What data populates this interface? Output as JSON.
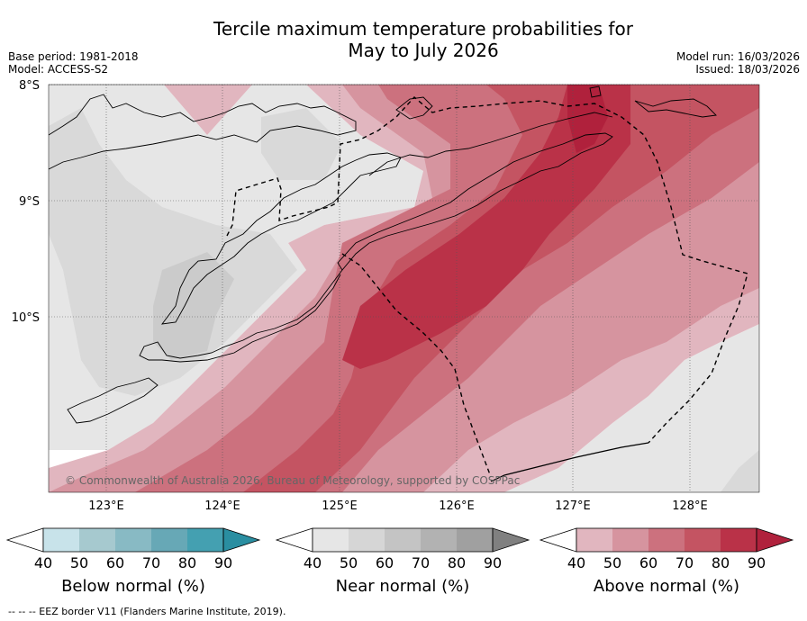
{
  "title_line1": "Tercile maximum temperature probabilities for",
  "title_line2": "May to July 2026",
  "base_period": "Base period: 1981-2018",
  "model": "Model: ACCESS-S2",
  "model_run": "Model run: 16/03/2026",
  "issued": "Issued: 18/03/2026",
  "copyright": "© Commonwealth of Australia 2026, Bureau of Meteorology, supported by COSPPac",
  "footnote": "--  --  -- EEZ border V11 (Flanders Marine Institute, 2019).",
  "lat_labels": [
    "8°S",
    "9°S",
    "10°S"
  ],
  "lon_labels": [
    "123°E",
    "124°E",
    "125°E",
    "126°E",
    "127°E",
    "128°E"
  ],
  "colorbars": [
    {
      "title": "Below normal (%)",
      "ticks": [
        "40",
        "50",
        "60",
        "70",
        "80",
        "90"
      ],
      "colors": [
        "#ffffff",
        "#c8e3ea",
        "#a6c9cf",
        "#88bac4",
        "#67a8b6",
        "#44a0b1",
        "#2a8ea1"
      ]
    },
    {
      "title": "Near normal (%)",
      "ticks": [
        "40",
        "50",
        "60",
        "70",
        "80",
        "90"
      ],
      "colors": [
        "#ffffff",
        "#e6e6e6",
        "#d6d6d6",
        "#c4c4c4",
        "#b2b2b2",
        "#a0a0a0",
        "#808080"
      ]
    },
    {
      "title": "Above normal (%)",
      "ticks": [
        "40",
        "50",
        "60",
        "70",
        "80",
        "90"
      ],
      "colors": [
        "#ffffff",
        "#e1b6bf",
        "#d6949f",
        "#cc717e",
        "#c45462",
        "#ba3248",
        "#b0213c"
      ]
    }
  ]
}
